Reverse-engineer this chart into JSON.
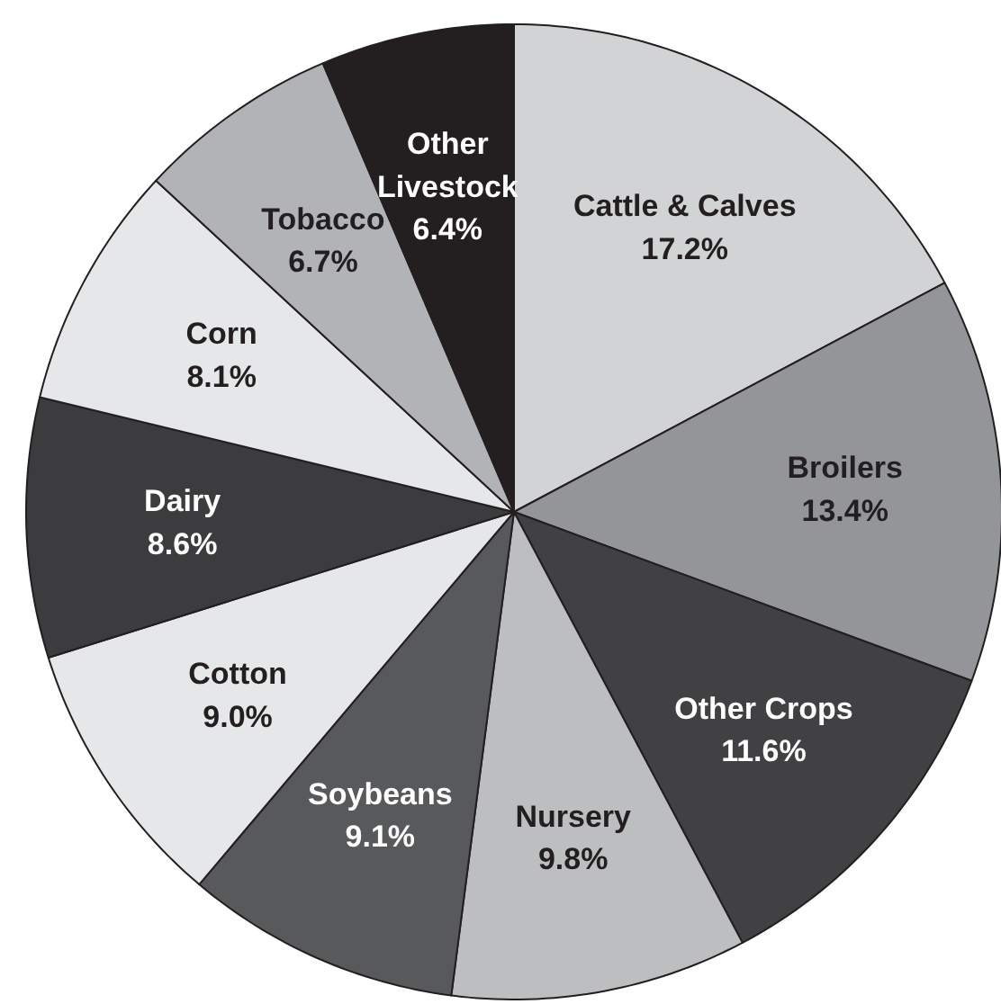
{
  "chart_data": {
    "type": "pie",
    "categories": [
      "Cattle & Calves",
      "Broilers",
      "Other Crops",
      "Nursery",
      "Soybeans",
      "Cotton",
      "Dairy",
      "Corn",
      "Tobacco",
      "Other Livestock"
    ],
    "values": [
      17.2,
      13.4,
      11.6,
      9.8,
      9.1,
      9.0,
      8.6,
      8.1,
      6.7,
      6.4
    ],
    "value_labels": [
      "17.2%",
      "13.4%",
      "11.6%",
      "9.8%",
      "9.1%",
      "9.0%",
      "8.6%",
      "8.1%",
      "6.7%",
      "6.4%"
    ],
    "colors": [
      "#d1d3d4",
      "#939598",
      "#414042",
      "#bcbec0",
      "#58595b",
      "#e6e7e8",
      "#3c3c3e",
      "#e6e7e8",
      "#b1b3b6",
      "#231f20"
    ]
  }
}
